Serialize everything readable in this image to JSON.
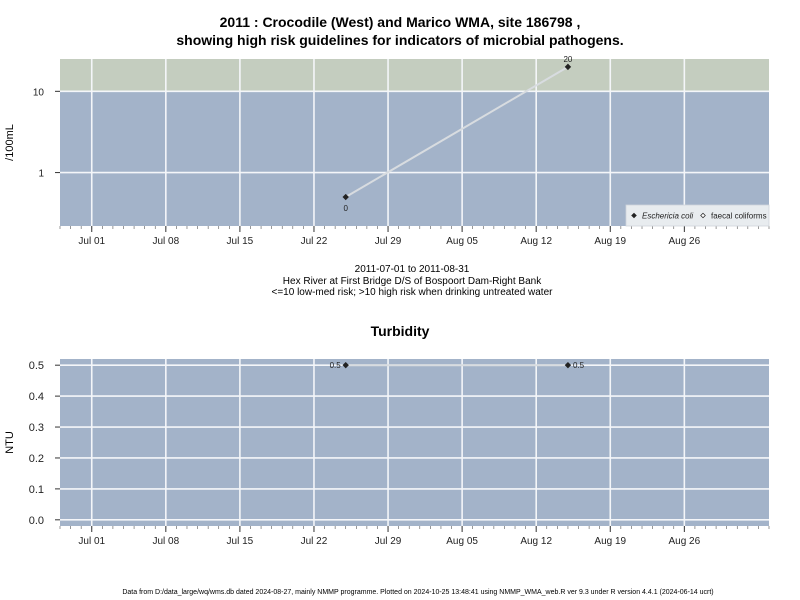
{
  "page": {
    "title_line1": "2011 : Crocodile (West) and Marico WMA, site 186798 ,",
    "title_line2": "showing high risk guidelines for indicators of microbial pathogens.",
    "date_range": "2011-07-01 to 2011-08-31",
    "site_desc": "Hex River at First Bridge D/S of Bospoort Dam-Right Bank",
    "risk_note": "<=10 low-med risk; >10 high risk when drinking untreated water",
    "footer": "Data from D:/data_large/wq/wms.db dated 2024-08-27, mainly NMMP programme. Plotted on 2024-10-25 13:48:41 using NMMP_WMA_web.R ver 9.3 under R version 4.4.1 (2024-06-14 ucrt)"
  },
  "colors": {
    "panel_bg": "#a3b3c9",
    "high_risk_band": "#c4cdbf",
    "grid": "#f4f6f9",
    "line": "#d8dce0",
    "point": "#222222"
  },
  "chart_data": [
    {
      "type": "line",
      "title": "",
      "xlabel": "",
      "ylabel": "/100mL",
      "yscale": "log",
      "yticks": [
        1,
        10
      ],
      "ytick_labels": [
        "1",
        "10"
      ],
      "xlim": [
        "2011-06-28",
        "2011-09-03"
      ],
      "ylim": [
        0.22,
        25
      ],
      "x_ticks": [
        "2011-07-01",
        "2011-07-08",
        "2011-07-15",
        "2011-07-22",
        "2011-07-29",
        "2011-08-05",
        "2011-08-12",
        "2011-08-19",
        "2011-08-26"
      ],
      "x_tick_labels": [
        "Jul 01",
        "Jul 08",
        "Jul 15",
        "Jul 22",
        "Jul 29",
        "Aug 05",
        "Aug 12",
        "Aug 19",
        "Aug 26"
      ],
      "high_risk_threshold": 10,
      "series": [
        {
          "name": "Eschericia coli",
          "points": [
            {
              "x": "2011-07-25",
              "y": 0.5,
              "label": "0"
            },
            {
              "x": "2011-08-15",
              "y": 20,
              "label": "20"
            }
          ]
        }
      ],
      "legend": {
        "position": "bottom-right",
        "entries": [
          {
            "label": "Eschericia coli",
            "marker": "filled-diamond",
            "italic": true
          },
          {
            "label": "faecal coliforms",
            "marker": "open-diamond",
            "italic": false
          }
        ]
      }
    },
    {
      "type": "line",
      "title": "Turbidity",
      "xlabel": "",
      "ylabel": "NTU",
      "yscale": "linear",
      "yticks": [
        0,
        0.1,
        0.2,
        0.3,
        0.4,
        0.5
      ],
      "ytick_labels": [
        "0.0",
        "0.1",
        "0.2",
        "0.3",
        "0.4",
        "0.5"
      ],
      "xlim": [
        "2011-06-28",
        "2011-09-03"
      ],
      "ylim": [
        -0.02,
        0.52
      ],
      "x_ticks": [
        "2011-07-01",
        "2011-07-08",
        "2011-07-15",
        "2011-07-22",
        "2011-07-29",
        "2011-08-05",
        "2011-08-12",
        "2011-08-19",
        "2011-08-26"
      ],
      "x_tick_labels": [
        "Jul 01",
        "Jul 08",
        "Jul 15",
        "Jul 22",
        "Jul 29",
        "Aug 05",
        "Aug 12",
        "Aug 19",
        "Aug 26"
      ],
      "series": [
        {
          "points": [
            {
              "x": "2011-07-25",
              "y": 0.5,
              "label": "0.5",
              "label_side": "left"
            },
            {
              "x": "2011-08-15",
              "y": 0.5,
              "label": "0.5",
              "label_side": "right"
            }
          ]
        }
      ]
    }
  ]
}
